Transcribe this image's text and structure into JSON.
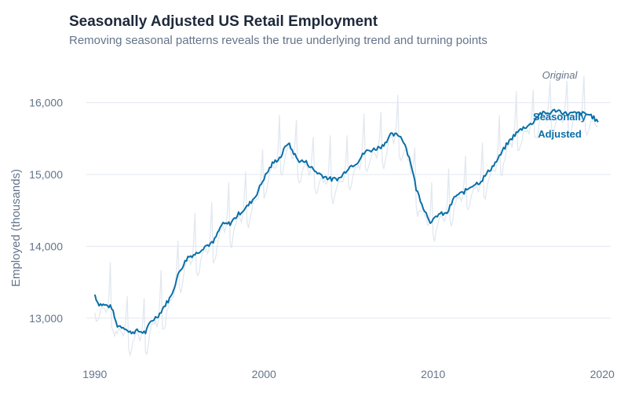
{
  "chart_data": {
    "type": "line",
    "title": "Seasonally Adjusted US Retail Employment",
    "subtitle": "Removing seasonal patterns reveals the true underlying trend and turning points",
    "xlabel": "",
    "ylabel": "Employed (thousands)",
    "xlim": [
      1989.5,
      2020.5
    ],
    "ylim": [
      12450,
      16500
    ],
    "x_ticks": [
      1990,
      2000,
      2010,
      2020
    ],
    "x_tick_labels": [
      "1990",
      "2000",
      "2010",
      "2020"
    ],
    "y_ticks": [
      13000,
      14000,
      15000,
      16000
    ],
    "y_tick_labels": [
      "13,000",
      "14,000",
      "15,000",
      "16,000"
    ],
    "grid": "horizontal",
    "colors": {
      "adjusted": "#0a6fa8",
      "original": "#e2e8f0",
      "original_label": "#64748b"
    },
    "series": [
      {
        "name": "Seasonally Adjusted",
        "label_lines": [
          "Seasonally",
          "Adjusted"
        ],
        "x": [
          1990.0,
          1990.2,
          1990.8,
          1991.0,
          1991.3,
          1991.8,
          1992.0,
          1992.5,
          1993.0,
          1993.3,
          1993.8,
          1994.0,
          1994.5,
          1995.0,
          1995.5,
          1996.0,
          1996.5,
          1997.0,
          1997.5,
          1998.0,
          1998.5,
          1999.0,
          1999.5,
          2000.0,
          2000.5,
          2001.0,
          2001.4,
          2002.0,
          2002.5,
          2003.0,
          2003.5,
          2004.0,
          2004.5,
          2005.0,
          2005.5,
          2006.0,
          2006.5,
          2007.0,
          2007.5,
          2008.0,
          2008.3,
          2008.7,
          2009.0,
          2009.5,
          2009.9,
          2010.3,
          2010.8,
          2011.3,
          2011.8,
          2012.3,
          2012.8,
          2013.3,
          2013.8,
          2014.3,
          2014.8,
          2015.3,
          2015.8,
          2016.3,
          2016.8,
          2017.3,
          2017.8,
          2018.3,
          2018.8,
          2019.3,
          2019.8
        ],
        "y": [
          13330,
          13200,
          13170,
          13150,
          12900,
          12870,
          12800,
          12820,
          12800,
          12950,
          13050,
          13130,
          13300,
          13650,
          13850,
          13900,
          14000,
          14050,
          14300,
          14320,
          14450,
          14550,
          14700,
          14950,
          15150,
          15250,
          15450,
          15200,
          15170,
          15050,
          14980,
          14930,
          14950,
          15100,
          15170,
          15320,
          15350,
          15400,
          15550,
          15550,
          15450,
          15150,
          14800,
          14500,
          14320,
          14450,
          14450,
          14700,
          14750,
          14850,
          14900,
          15050,
          15200,
          15400,
          15550,
          15650,
          15700,
          15850,
          15850,
          15900,
          15850,
          15850,
          15850,
          15830,
          15720
        ]
      },
      {
        "name": "Original",
        "label_lines": [
          "Original"
        ],
        "monthly_seasonal_offset": [
          -250,
          -320,
          -250,
          -150,
          -80,
          -30,
          -60,
          -50,
          -120,
          -50,
          150,
          520
        ]
      }
    ]
  }
}
